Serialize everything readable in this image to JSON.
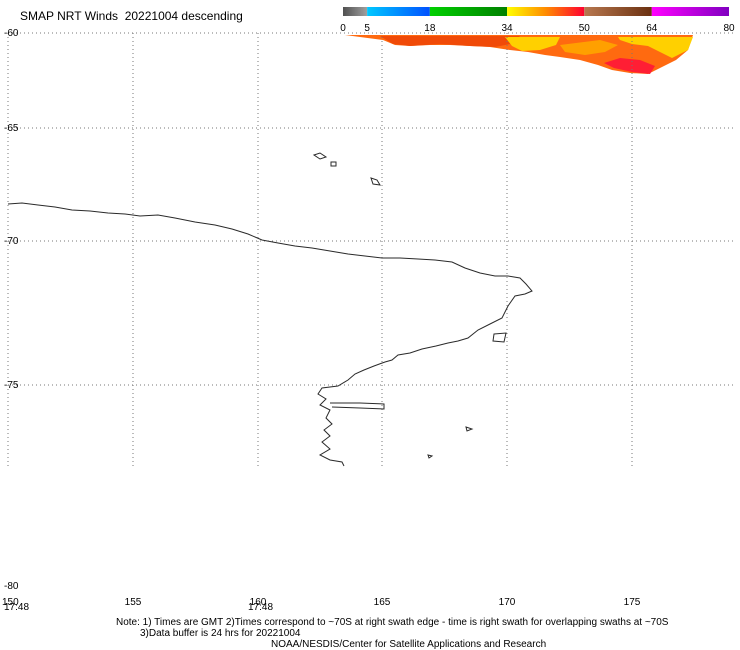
{
  "title": "SMAP NRT Winds  20221004 descending",
  "colorbar": {
    "tick_labels": [
      "0",
      "5",
      "18",
      "34",
      "50",
      "64",
      "80"
    ],
    "tick_values": [
      0,
      5,
      18,
      34,
      50,
      64,
      80
    ],
    "segments": [
      {
        "from": 0,
        "to": 5,
        "colors": [
          "#505050",
          "#a0a0a0"
        ]
      },
      {
        "from": 5,
        "to": 18,
        "colors": [
          "#00c8ff",
          "#0050ff"
        ]
      },
      {
        "from": 18,
        "to": 34,
        "colors": [
          "#00d000",
          "#008000"
        ]
      },
      {
        "from": 34,
        "to": 50,
        "colors": [
          "#ffff00",
          "#ff8c00",
          "#ff0030"
        ]
      },
      {
        "from": 50,
        "to": 64,
        "colors": [
          "#b87850",
          "#6a3010"
        ]
      },
      {
        "from": 64,
        "to": 80,
        "colors": [
          "#ff00ff",
          "#8000c0"
        ]
      }
    ]
  },
  "map": {
    "lat_labels": [
      "-60",
      "-65",
      "-70",
      "-75",
      "-80"
    ],
    "lon_labels": [
      "150",
      "155",
      "160",
      "165",
      "170",
      "175"
    ],
    "time_labels": [
      "17:48",
      "17:48"
    ]
  },
  "notes": {
    "line1": "Note: 1) Times are GMT 2)Times correspond to ~70S at right swath edge - time is right swath for overlapping swaths at ~70S",
    "line2": "3)Data buffer is 24 hrs for 20221004",
    "line3": "NOAA/NESDIS/Center for Satellite Applications and Research"
  }
}
